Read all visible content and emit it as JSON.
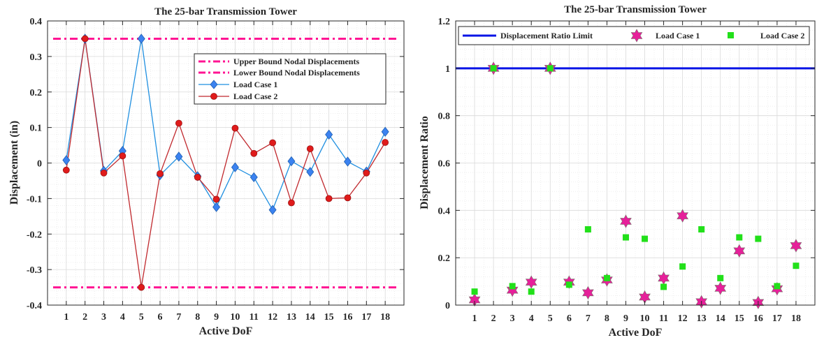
{
  "chart_data": [
    {
      "type": "line",
      "title": "The 25-bar Transmission Tower",
      "xlabel": "Active DoF",
      "ylabel": "Displacement (in)",
      "x": [
        1,
        2,
        3,
        4,
        5,
        6,
        7,
        8,
        9,
        10,
        11,
        12,
        13,
        14,
        15,
        16,
        17,
        18
      ],
      "xlim": [
        0,
        19
      ],
      "ylim": [
        -0.4,
        0.4
      ],
      "yticks": [
        -0.4,
        -0.3,
        -0.2,
        -0.1,
        0,
        0.1,
        0.2,
        0.3,
        0.4
      ],
      "ytick_labels": [
        "-0.4",
        "-0.3",
        "-0.2",
        "-0.1",
        "0",
        "0.1",
        "0.2",
        "0.3",
        "0.4"
      ],
      "grid": true,
      "minor_grid": true,
      "legend_position": "top-right",
      "series": [
        {
          "name": "Upper Bound Nodal Displacements",
          "kind": "hline",
          "value": 0.35,
          "color": "#ff1493",
          "style": "dash-dot"
        },
        {
          "name": "Lower Bound Nodal Displacements",
          "kind": "hline",
          "value": -0.35,
          "color": "#ff1493",
          "style": "dash-dot"
        },
        {
          "name": "Load Case 1",
          "kind": "line",
          "color": "#1f8fe0",
          "marker": "diamond",
          "values": [
            0.008,
            0.35,
            -0.022,
            0.034,
            0.35,
            -0.034,
            0.018,
            -0.037,
            -0.124,
            -0.012,
            -0.04,
            -0.132,
            0.005,
            -0.025,
            0.08,
            0.004,
            -0.024,
            0.088
          ]
        },
        {
          "name": "Load Case 2",
          "kind": "line",
          "color": "#c0282d",
          "marker": "circle",
          "values": [
            -0.02,
            0.35,
            -0.028,
            0.02,
            -0.35,
            -0.03,
            0.112,
            -0.04,
            -0.102,
            0.098,
            0.027,
            0.057,
            -0.112,
            0.04,
            -0.1,
            -0.098,
            -0.028,
            0.058
          ]
        }
      ]
    },
    {
      "type": "scatter",
      "title": "The 25-bar Transmission Tower",
      "xlabel": "Active DoF",
      "ylabel": "Displacement Ratio",
      "x": [
        1,
        2,
        3,
        4,
        5,
        6,
        7,
        8,
        9,
        10,
        11,
        12,
        13,
        14,
        15,
        16,
        17,
        18
      ],
      "xlim": [
        0,
        19
      ],
      "ylim": [
        0,
        1.2
      ],
      "yticks": [
        0,
        0.2,
        0.4,
        0.6,
        0.8,
        1,
        1.2
      ],
      "ytick_labels": [
        "0",
        "0.2",
        "0.4",
        "0.6",
        "0.8",
        "1",
        "1.2"
      ],
      "grid": true,
      "minor_grid": true,
      "legend_position": "top",
      "series": [
        {
          "name": "Displacement Ratio Limit",
          "kind": "hline",
          "value": 1,
          "color": "#0a14e6",
          "style": "solid"
        },
        {
          "name": "Load Case 1",
          "kind": "scatter",
          "color": "#e6209a",
          "marker": "hexagram",
          "values": [
            0.022,
            1.0,
            0.063,
            0.097,
            1.0,
            0.097,
            0.052,
            0.106,
            0.354,
            0.034,
            0.114,
            0.377,
            0.014,
            0.071,
            0.229,
            0.011,
            0.069,
            0.251
          ]
        },
        {
          "name": "Load Case 2",
          "kind": "scatter",
          "color": "#22e01a",
          "marker": "square",
          "values": [
            0.057,
            1.0,
            0.08,
            0.057,
            1.0,
            0.086,
            0.32,
            0.114,
            0.286,
            0.28,
            0.077,
            0.163,
            0.32,
            0.114,
            0.286,
            0.28,
            0.08,
            0.166
          ]
        }
      ]
    }
  ]
}
